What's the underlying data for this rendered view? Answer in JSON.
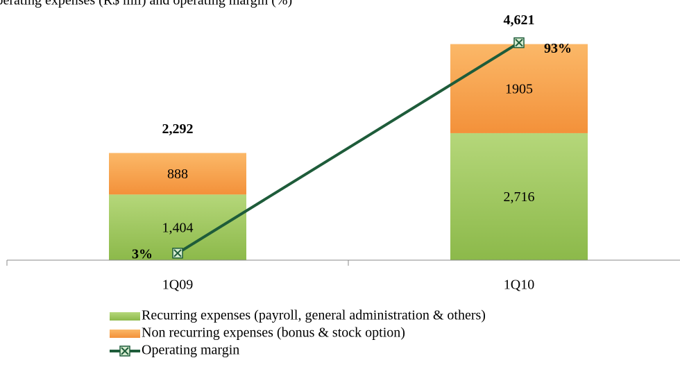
{
  "chart_data": {
    "type": "bar",
    "title": "Operating expenses (R$ mil) and operating margin (%)",
    "categories": [
      "1Q09",
      "1Q10"
    ],
    "series": [
      {
        "name": "Recurring expenses (payroll, general administration & others)",
        "color": "#9bc45a",
        "values": [
          1404,
          2716
        ],
        "value_labels": [
          "1,404",
          "2,716"
        ]
      },
      {
        "name": "Non recurring expenses (bonus & stock option)",
        "color": "#f7a04a",
        "values": [
          888,
          1905
        ]
      },
      {
        "name": "Operating margin",
        "type": "line",
        "axis": "y2",
        "color": "#1e5c3a",
        "values": [
          3,
          93
        ],
        "value_labels": [
          "3%",
          "93%"
        ]
      }
    ],
    "totals": [
      2292,
      4621
    ],
    "total_labels": [
      "2,292",
      "4,621"
    ],
    "ylim": [
      0,
      5000
    ],
    "y2lim": [
      0,
      100
    ]
  }
}
